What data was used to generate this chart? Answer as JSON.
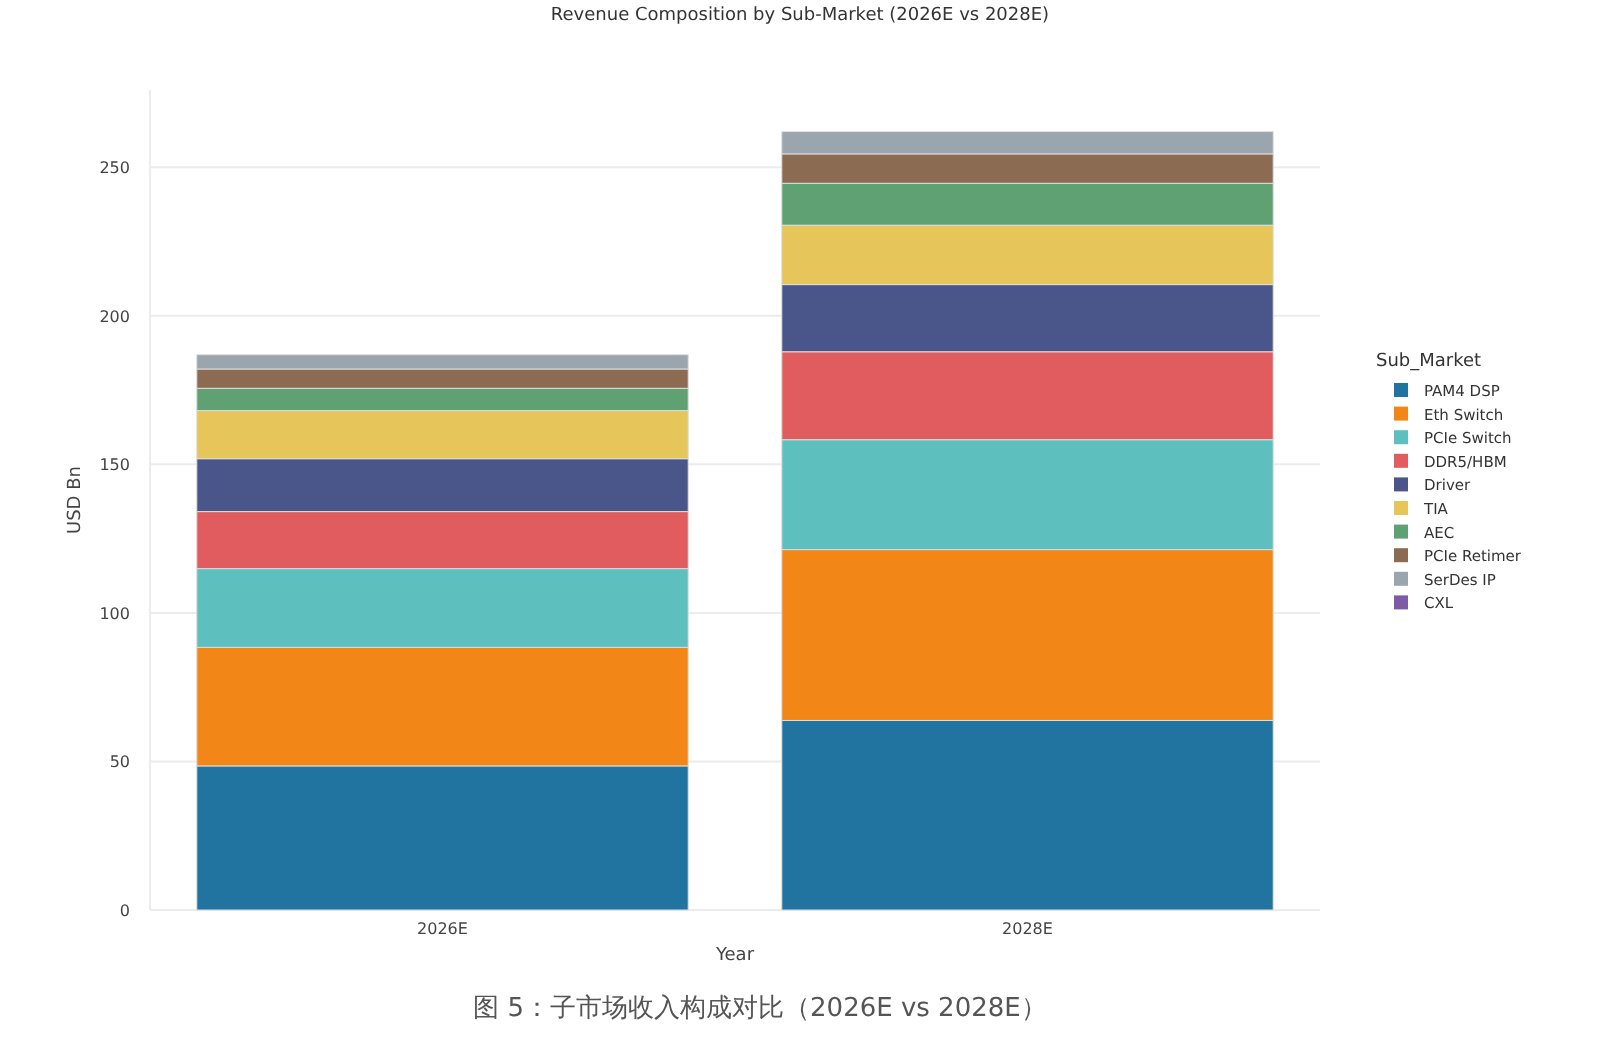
{
  "chart_data": {
    "type": "bar",
    "stacked": true,
    "title": "Revenue Composition by Sub-Market (2026E vs 2028E)",
    "xlabel": "Year",
    "ylabel": "USD Bn",
    "legend_title": "Sub_Market",
    "categories": [
      "2026E",
      "2028E"
    ],
    "series": [
      {
        "name": "PAM4 DSP",
        "color": "#2274a0",
        "values": [
          48.5,
          63.8
        ]
      },
      {
        "name": "Eth Switch",
        "color": "#f28718",
        "values": [
          39.9,
          57.5
        ]
      },
      {
        "name": "PCIe Switch",
        "color": "#5ebfbf",
        "values": [
          26.5,
          37.0
        ]
      },
      {
        "name": "DDR5/HBM",
        "color": "#e05c5e",
        "values": [
          19.2,
          29.6
        ]
      },
      {
        "name": "Driver",
        "color": "#4a558a",
        "values": [
          17.8,
          22.6
        ]
      },
      {
        "name": "TIA",
        "color": "#e6c55a",
        "values": [
          16.2,
          20.0
        ]
      },
      {
        "name": "AEC",
        "color": "#5fa172",
        "values": [
          7.5,
          14.1
        ]
      },
      {
        "name": "PCIe Retimer",
        "color": "#8c6b53",
        "values": [
          6.5,
          9.9
        ]
      },
      {
        "name": "SerDes IP",
        "color": "#9ba5ad",
        "values": [
          4.8,
          7.5
        ]
      },
      {
        "name": "CXL",
        "color": "#7e5ba6",
        "values": [
          0,
          0
        ]
      }
    ],
    "ylim": [
      0,
      276
    ],
    "yticks": [
      0,
      50,
      100,
      150,
      200,
      250
    ],
    "grid": "y",
    "legend": "right",
    "annotations": [
      "图 5：子市场收入构成对比（2026E vs 2028E）"
    ]
  }
}
